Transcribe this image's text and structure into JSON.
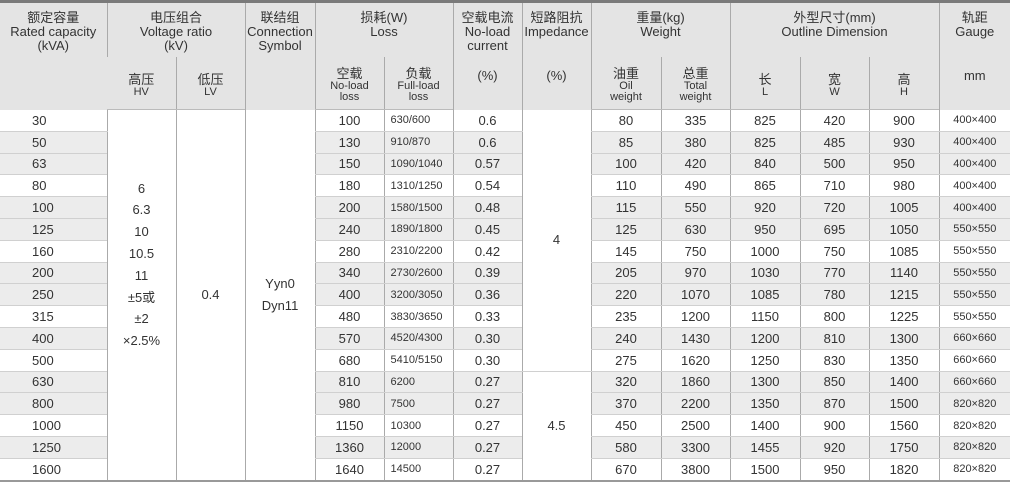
{
  "header": {
    "capacity": {
      "zh": "额定容量",
      "en": "Rated capacity",
      "unit": "(kVA)"
    },
    "voltage": {
      "zh": "电压组合",
      "en": "Voltage ratio",
      "unit": "(kV)",
      "hv_zh": "高压",
      "hv_en": "HV",
      "lv_zh": "低压",
      "lv_en": "LV"
    },
    "connection": {
      "zh": "联结组",
      "en1": "Connection",
      "en2": "Symbol"
    },
    "loss": {
      "zh": "损耗(W)",
      "en": "Loss",
      "noload_zh": "空载",
      "noload_en1": "No-load",
      "noload_en2": "loss",
      "full_zh": "负载",
      "full_en1": "Full-load",
      "full_en2": "loss"
    },
    "current": {
      "zh": "空载电流",
      "en1": "No-load",
      "en2": "current",
      "unit": "(%)"
    },
    "impedance": {
      "zh": "短路阻抗",
      "en": "Impedance",
      "unit": "(%)"
    },
    "weight": {
      "zh": "重量(kg)",
      "en": "Weight",
      "oil_zh": "油重",
      "oil_en1": "Oil",
      "oil_en2": "weight",
      "total_zh": "总重",
      "total_en1": "Total",
      "total_en2": "weight"
    },
    "dimension": {
      "zh": "外型尺寸(mm)",
      "en": "Outline Dimension",
      "l_zh": "长",
      "l_en": "L",
      "w_zh": "宽",
      "w_en": "W",
      "h_zh": "高",
      "h_en": "H"
    },
    "gauge": {
      "zh": "轨距",
      "en": "Gauge",
      "unit": "mm"
    }
  },
  "merged": {
    "hv": [
      "6",
      "6.3",
      "10",
      "10.5",
      "11",
      "±5或",
      "±2",
      "×2.5%"
    ],
    "lv": "0.4",
    "connection": [
      "Yyn0",
      "Dyn11"
    ],
    "impedance": [
      {
        "value": "4",
        "rows": 12
      },
      {
        "value": "4.5",
        "rows": 5
      }
    ]
  },
  "rows": [
    {
      "capacity": "30",
      "noload": "100",
      "full": "630/600",
      "current": "0.6",
      "oil": "80",
      "total": "335",
      "l": "825",
      "w": "420",
      "h": "900",
      "gauge": "400×400"
    },
    {
      "capacity": "50",
      "noload": "130",
      "full": "910/870",
      "current": "0.6",
      "oil": "85",
      "total": "380",
      "l": "825",
      "w": "485",
      "h": "930",
      "gauge": "400×400"
    },
    {
      "capacity": "63",
      "noload": "150",
      "full": "1090/1040",
      "current": "0.57",
      "oil": "100",
      "total": "420",
      "l": "840",
      "w": "500",
      "h": "950",
      "gauge": "400×400"
    },
    {
      "capacity": "80",
      "noload": "180",
      "full": "1310/1250",
      "current": "0.54",
      "oil": "110",
      "total": "490",
      "l": "865",
      "w": "710",
      "h": "980",
      "gauge": "400×400"
    },
    {
      "capacity": "100",
      "noload": "200",
      "full": "1580/1500",
      "current": "0.48",
      "oil": "115",
      "total": "550",
      "l": "920",
      "w": "720",
      "h": "1005",
      "gauge": "400×400"
    },
    {
      "capacity": "125",
      "noload": "240",
      "full": "1890/1800",
      "current": "0.45",
      "oil": "125",
      "total": "630",
      "l": "950",
      "w": "695",
      "h": "1050",
      "gauge": "550×550"
    },
    {
      "capacity": "160",
      "noload": "280",
      "full": "2310/2200",
      "current": "0.42",
      "oil": "145",
      "total": "750",
      "l": "1000",
      "w": "750",
      "h": "1085",
      "gauge": "550×550"
    },
    {
      "capacity": "200",
      "noload": "340",
      "full": "2730/2600",
      "current": "0.39",
      "oil": "205",
      "total": "970",
      "l": "1030",
      "w": "770",
      "h": "1140",
      "gauge": "550×550"
    },
    {
      "capacity": "250",
      "noload": "400",
      "full": "3200/3050",
      "current": "0.36",
      "oil": "220",
      "total": "1070",
      "l": "1085",
      "w": "780",
      "h": "1215",
      "gauge": "550×550"
    },
    {
      "capacity": "315",
      "noload": "480",
      "full": "3830/3650",
      "current": "0.33",
      "oil": "235",
      "total": "1200",
      "l": "1150",
      "w": "800",
      "h": "1225",
      "gauge": "550×550"
    },
    {
      "capacity": "400",
      "noload": "570",
      "full": "4520/4300",
      "current": "0.30",
      "oil": "240",
      "total": "1430",
      "l": "1200",
      "w": "810",
      "h": "1300",
      "gauge": "660×660"
    },
    {
      "capacity": "500",
      "noload": "680",
      "full": "5410/5150",
      "current": "0.30",
      "oil": "275",
      "total": "1620",
      "l": "1250",
      "w": "830",
      "h": "1350",
      "gauge": "660×660"
    },
    {
      "capacity": "630",
      "noload": "810",
      "full": "6200",
      "current": "0.27",
      "oil": "320",
      "total": "1860",
      "l": "1300",
      "w": "850",
      "h": "1400",
      "gauge": "660×660"
    },
    {
      "capacity": "800",
      "noload": "980",
      "full": "7500",
      "current": "0.27",
      "oil": "370",
      "total": "2200",
      "l": "1350",
      "w": "870",
      "h": "1500",
      "gauge": "820×820"
    },
    {
      "capacity": "1000",
      "noload": "1150",
      "full": "10300",
      "current": "0.27",
      "oil": "450",
      "total": "2500",
      "l": "1400",
      "w": "900",
      "h": "1560",
      "gauge": "820×820"
    },
    {
      "capacity": "1250",
      "noload": "1360",
      "full": "12000",
      "current": "0.27",
      "oil": "580",
      "total": "3300",
      "l": "1455",
      "w": "920",
      "h": "1750",
      "gauge": "820×820"
    },
    {
      "capacity": "1600",
      "noload": "1640",
      "full": "14500",
      "current": "0.27",
      "oil": "670",
      "total": "3800",
      "l": "1500",
      "w": "950",
      "h": "1820",
      "gauge": "820×820"
    }
  ]
}
